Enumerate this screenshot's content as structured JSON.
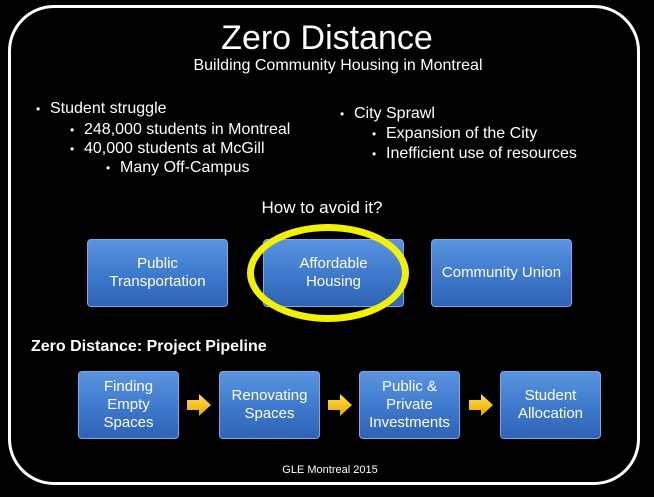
{
  "title": "Zero Distance",
  "subtitle": "Building Community Housing in Montreal",
  "left_bullets": {
    "l1": "Student struggle",
    "l2a": "248,000 students in Montreal",
    "l2b": "40,000 students at McGill",
    "l3": "Many Off-Campus"
  },
  "right_bullets": {
    "l1": "City Sprawl",
    "l2a": "Expansion of the City",
    "l2b": "Inefficient use of resources"
  },
  "question": "How to avoid it?",
  "solutions": {
    "public_transportation": [
      "Public",
      "Transportation"
    ],
    "affordable_housing": [
      "Affordable",
      "Housing"
    ],
    "community_union": "Community Union"
  },
  "pipeline": {
    "title": "Zero Distance: Project Pipeline",
    "step1": [
      "Finding",
      "Empty",
      "Spaces"
    ],
    "step2": [
      "Renovating",
      "Spaces"
    ],
    "step3": [
      "Public &",
      "Private",
      "Investments"
    ],
    "step4": [
      "Student",
      "Allocation"
    ]
  },
  "footer": "GLE Montreal 2015",
  "colors": {
    "box": "#3d78cc",
    "highlight_ring": "#f2f200",
    "arrow": "#f5c400"
  }
}
